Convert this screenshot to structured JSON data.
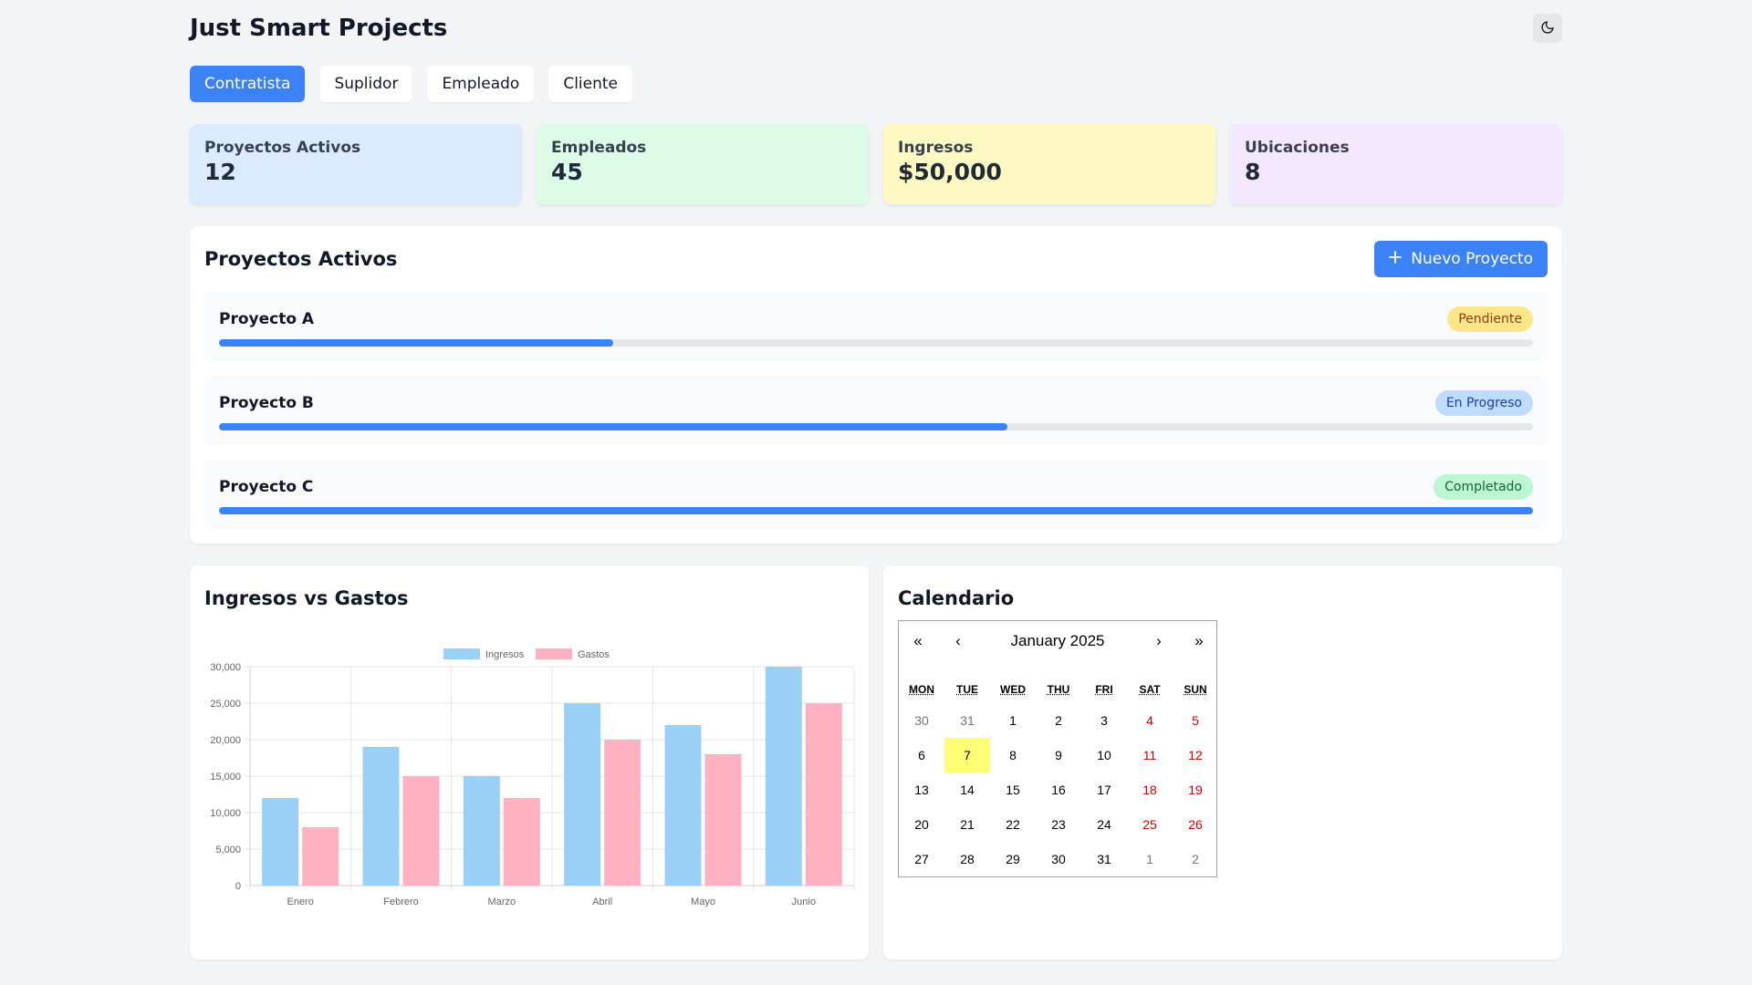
{
  "app": {
    "title": "Just Smart Projects"
  },
  "tabs": [
    {
      "label": "Contratista",
      "active": true
    },
    {
      "label": "Suplidor",
      "active": false
    },
    {
      "label": "Empleado",
      "active": false
    },
    {
      "label": "Cliente",
      "active": false
    }
  ],
  "stats": [
    {
      "label": "Proyectos Activos",
      "value": "12",
      "color": "#dbeafe"
    },
    {
      "label": "Empleados",
      "value": "45",
      "color": "#dcfce7"
    },
    {
      "label": "Ingresos",
      "value": "$50,000",
      "color": "#fef9c3"
    },
    {
      "label": "Ubicaciones",
      "value": "8",
      "color": "#f3e8ff"
    }
  ],
  "projects_panel": {
    "title": "Proyectos Activos",
    "new_button": "Nuevo Proyecto",
    "items": [
      {
        "name": "Proyecto A",
        "status": "Pendiente",
        "progress": 0.3,
        "badge_bg": "#fde68a",
        "badge_fg": "#92400e"
      },
      {
        "name": "Proyecto B",
        "status": "En Progreso",
        "progress": 0.6,
        "badge_bg": "#bfdbfe",
        "badge_fg": "#1e40af"
      },
      {
        "name": "Proyecto C",
        "status": "Completado",
        "progress": 1.0,
        "badge_bg": "#bbf7d0",
        "badge_fg": "#166534"
      }
    ]
  },
  "chart_panel": {
    "title": "Ingresos vs Gastos"
  },
  "chart_data": {
    "type": "bar",
    "title": "",
    "xlabel": "",
    "ylabel": "",
    "categories": [
      "Enero",
      "Febrero",
      "Marzo",
      "Abril",
      "Mayo",
      "Junio"
    ],
    "series": [
      {
        "name": "Ingresos",
        "values": [
          12000,
          19000,
          15000,
          25000,
          22000,
          30000
        ],
        "color": "#9ad0f5",
        "border": "#36a2eb"
      },
      {
        "name": "Gastos",
        "values": [
          8000,
          15000,
          12000,
          20000,
          18000,
          25000
        ],
        "color": "#ffb1c1",
        "border": "#ff6384"
      }
    ],
    "ylim": [
      0,
      30000
    ],
    "yticks": [
      0,
      5000,
      10000,
      15000,
      20000,
      25000,
      30000
    ],
    "ytick_labels": [
      "0",
      "5,000",
      "10,000",
      "15,000",
      "20,000",
      "25,000",
      "30,000"
    ],
    "grid": true,
    "legend": "top-center"
  },
  "calendar_panel": {
    "title": "Calendario",
    "month": "January 2025",
    "nav": {
      "prev_year": "«",
      "prev": "‹",
      "next": "›",
      "next_year": "»"
    },
    "weekdays": [
      "MON",
      "TUE",
      "WED",
      "THU",
      "FRI",
      "SAT",
      "SUN"
    ],
    "weeks": [
      [
        "30",
        "31",
        "1",
        "2",
        "3",
        "4",
        "5"
      ],
      [
        "6",
        "7",
        "8",
        "9",
        "10",
        "11",
        "12"
      ],
      [
        "13",
        "14",
        "15",
        "16",
        "17",
        "18",
        "19"
      ],
      [
        "20",
        "21",
        "22",
        "23",
        "24",
        "25",
        "26"
      ],
      [
        "27",
        "28",
        "29",
        "30",
        "31",
        "1",
        "2"
      ]
    ],
    "today": "7"
  },
  "icons": {
    "theme": "moon-icon",
    "add": "plus-icon"
  }
}
